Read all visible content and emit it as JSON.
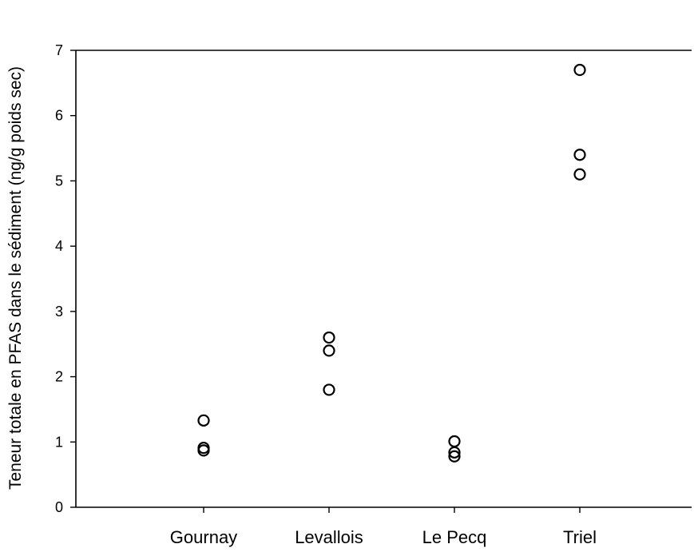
{
  "chart_data": {
    "type": "scatter",
    "title": "",
    "xlabel": "",
    "ylabel": "Teneur totale en PFAS dans le sédiment (ng/g poids sec)",
    "categories": [
      "Gournay",
      "Levallois",
      "Le Pecq",
      "Triel"
    ],
    "ylim": [
      0,
      7
    ],
    "yticks": [
      "0",
      "1",
      "2",
      "3",
      "4",
      "5",
      "6",
      "7"
    ],
    "grid": false,
    "legend": "none",
    "marker": "open-circle",
    "series": [
      {
        "points": [
          {
            "x": "Gournay",
            "y": 1.33
          },
          {
            "x": "Gournay",
            "y": 0.91
          },
          {
            "x": "Gournay",
            "y": 0.87
          },
          {
            "x": "Levallois",
            "y": 2.6
          },
          {
            "x": "Levallois",
            "y": 2.4
          },
          {
            "x": "Levallois",
            "y": 1.8
          },
          {
            "x": "Le Pecq",
            "y": 1.01
          },
          {
            "x": "Le Pecq",
            "y": 0.84
          },
          {
            "x": "Le Pecq",
            "y": 0.78
          },
          {
            "x": "Triel",
            "y": 6.7
          },
          {
            "x": "Triel",
            "y": 5.4
          },
          {
            "x": "Triel",
            "y": 5.1
          }
        ]
      }
    ],
    "colors": {
      "marker": "#000000",
      "axis": "#000000"
    }
  }
}
